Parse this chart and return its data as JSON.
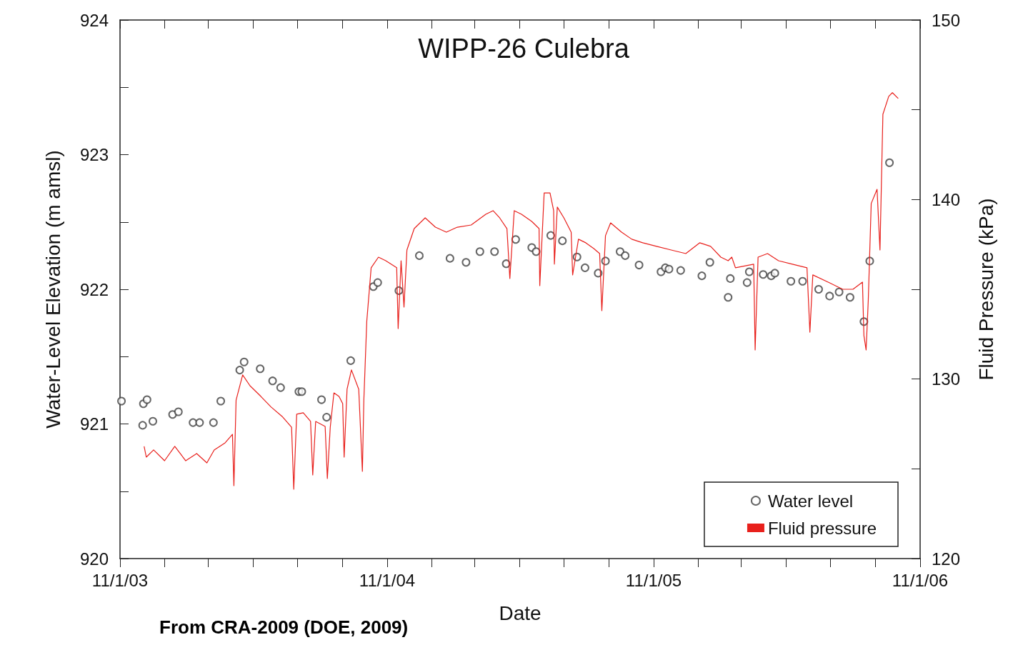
{
  "chart_data": {
    "type": "line",
    "title": "WIPP-26 Culebra",
    "xlabel": "Date",
    "ylabel": "Water-Level Elevation (m amsl)",
    "y2label": "Fluid Pressure (kPa)",
    "annotations": [
      "From CRA-2009 (DOE, 2009)"
    ],
    "xlim": [
      "2003-11-01",
      "2006-11-01"
    ],
    "xticks": [
      {
        "value": "2003-11-01",
        "label": "11/1/03"
      },
      {
        "value": "2004-01-01",
        "label": null
      },
      {
        "value": "2004-03-01",
        "label": null
      },
      {
        "value": "2004-05-01",
        "label": null
      },
      {
        "value": "2004-07-01",
        "label": null
      },
      {
        "value": "2004-09-01",
        "label": null
      },
      {
        "value": "2004-11-01",
        "label": "11/1/04"
      },
      {
        "value": "2005-01-01",
        "label": null
      },
      {
        "value": "2005-03-01",
        "label": null
      },
      {
        "value": "2005-05-01",
        "label": null
      },
      {
        "value": "2005-07-01",
        "label": null
      },
      {
        "value": "2005-09-01",
        "label": null
      },
      {
        "value": "2005-11-01",
        "label": "11/1/05"
      },
      {
        "value": "2006-01-01",
        "label": null
      },
      {
        "value": "2006-03-01",
        "label": null
      },
      {
        "value": "2006-05-01",
        "label": null
      },
      {
        "value": "2006-07-01",
        "label": null
      },
      {
        "value": "2006-09-01",
        "label": null
      },
      {
        "value": "2006-11-01",
        "label": "11/1/06"
      }
    ],
    "ylim": [
      920,
      924
    ],
    "yticks": [
      920,
      {
        "value": 920.5,
        "label": null
      },
      921,
      {
        "value": 921.5,
        "label": null
      },
      922,
      {
        "value": 922.5,
        "label": null
      },
      923,
      {
        "value": 923.5,
        "label": null
      },
      924
    ],
    "y2lim": [
      120,
      150
    ],
    "y2ticks": [
      120,
      {
        "value": 125,
        "label": null
      },
      130,
      {
        "value": 135,
        "label": null
      },
      140,
      {
        "value": 145,
        "label": null
      },
      150
    ],
    "grid": false,
    "legend": "bottom right",
    "series": [
      {
        "name": "Water level",
        "type": "scatter",
        "marker": "circle",
        "color": "#404040",
        "x": [
          "2003-11-03",
          "2003-12-02",
          "2003-12-03",
          "2003-12-08",
          "2003-12-16",
          "2004-01-12",
          "2004-01-20",
          "2004-02-09",
          "2004-02-18",
          "2004-03-08",
          "2004-03-18",
          "2004-04-13",
          "2004-04-19",
          "2004-05-11",
          "2004-05-28",
          "2004-06-08",
          "2004-07-03",
          "2004-07-07",
          "2004-08-03",
          "2004-08-10",
          "2004-09-12",
          "2004-10-13",
          "2004-10-19",
          "2004-11-17",
          "2004-12-15",
          "2005-01-26",
          "2005-02-17",
          "2005-03-08",
          "2005-03-28",
          "2005-04-13",
          "2005-04-26",
          "2005-05-18",
          "2005-05-24",
          "2005-06-13",
          "2005-06-29",
          "2005-07-19",
          "2005-07-30",
          "2005-08-17",
          "2005-08-27",
          "2005-09-16",
          "2005-09-23",
          "2005-10-12",
          "2005-11-11",
          "2005-11-17",
          "2005-11-22",
          "2005-12-08",
          "2006-01-06",
          "2006-01-17",
          "2006-02-11",
          "2006-02-14",
          "2006-03-09",
          "2006-03-12",
          "2006-03-31",
          "2006-04-11",
          "2006-04-16",
          "2006-05-08",
          "2006-05-24",
          "2006-06-15",
          "2006-06-30",
          "2006-07-13",
          "2006-07-28",
          "2006-08-16",
          "2006-08-24",
          "2006-09-20"
        ],
        "values": [
          921.17,
          920.99,
          921.15,
          921.18,
          921.02,
          921.07,
          921.09,
          921.01,
          921.01,
          921.01,
          921.17,
          921.4,
          921.46,
          921.41,
          921.32,
          921.27,
          921.24,
          921.24,
          921.18,
          921.05,
          921.47,
          922.02,
          922.05,
          921.99,
          922.25,
          922.23,
          922.2,
          922.28,
          922.28,
          922.19,
          922.37,
          922.31,
          922.28,
          922.4,
          922.36,
          922.24,
          922.16,
          922.12,
          922.21,
          922.28,
          922.25,
          922.18,
          922.13,
          922.16,
          922.15,
          922.14,
          922.1,
          922.2,
          921.94,
          922.08,
          922.05,
          922.13,
          922.11,
          922.1,
          922.12,
          922.06,
          922.06,
          922.0,
          921.95,
          921.98,
          921.94,
          921.76,
          922.21,
          922.94
        ]
      },
      {
        "name": "Fluid pressure",
        "axis": "y2",
        "marker": "none",
        "line_style": "solid",
        "color": "#e8201c",
        "x": [
          "2003-12-04",
          "2003-12-07",
          "2003-12-17",
          "2004-01-01",
          "2004-01-15",
          "2004-01-30",
          "2004-02-14",
          "2004-02-28",
          "2004-03-09",
          "2004-03-24",
          "2004-04-03",
          "2004-04-05",
          "2004-04-08",
          "2004-04-17",
          "2004-04-27",
          "2004-05-12",
          "2004-05-26",
          "2004-06-10",
          "2004-06-23",
          "2004-06-26",
          "2004-06-30",
          "2004-07-09",
          "2004-07-19",
          "2004-07-22",
          "2004-07-26",
          "2004-08-08",
          "2004-08-11",
          "2004-08-15",
          "2004-08-20",
          "2004-08-27",
          "2004-09-01",
          "2004-09-03",
          "2004-09-07",
          "2004-09-13",
          "2004-09-23",
          "2004-09-28",
          "2004-09-30",
          "2004-10-04",
          "2004-10-10",
          "2004-10-20",
          "2004-10-30",
          "2004-11-14",
          "2004-11-16",
          "2004-11-20",
          "2004-11-24",
          "2004-11-28",
          "2004-12-08",
          "2004-12-23",
          "2005-01-06",
          "2005-01-21",
          "2005-02-05",
          "2005-02-24",
          "2005-03-16",
          "2005-03-26",
          "2005-04-04",
          "2005-04-14",
          "2005-04-18",
          "2005-04-24",
          "2005-05-04",
          "2005-05-18",
          "2005-05-28",
          "2005-05-29",
          "2005-06-04",
          "2005-06-12",
          "2005-06-17",
          "2005-06-18",
          "2005-06-22",
          "2005-07-01",
          "2005-07-11",
          "2005-07-13",
          "2005-07-21",
          "2005-07-31",
          "2005-08-11",
          "2005-08-19",
          "2005-08-22",
          "2005-08-27",
          "2005-09-03",
          "2005-09-18",
          "2005-10-02",
          "2005-10-17",
          "2005-11-05",
          "2005-11-25",
          "2005-12-15",
          "2006-01-03",
          "2006-01-18",
          "2006-02-01",
          "2006-02-11",
          "2006-02-16",
          "2006-02-21",
          "2006-03-18",
          "2006-03-20",
          "2006-03-24",
          "2006-04-06",
          "2006-04-21",
          "2006-05-10",
          "2006-05-30",
          "2006-06-03",
          "2006-06-07",
          "2006-06-28",
          "2006-07-18",
          "2006-08-01",
          "2006-08-14",
          "2006-08-16",
          "2006-08-19",
          "2006-08-22",
          "2006-08-26",
          "2006-09-03",
          "2006-09-07",
          "2006-09-11",
          "2006-09-19",
          "2006-09-24",
          "2006-10-02"
        ],
        "values": [
          126.25,
          125.65,
          126.05,
          125.45,
          126.25,
          125.45,
          125.85,
          125.33,
          126.05,
          126.45,
          126.92,
          124.06,
          128.83,
          130.23,
          129.63,
          129.03,
          128.44,
          127.92,
          127.32,
          123.86,
          128.04,
          128.12,
          127.64,
          124.66,
          127.64,
          127.36,
          124.46,
          127.32,
          129.23,
          129.03,
          128.63,
          125.65,
          129.43,
          130.51,
          129.43,
          124.86,
          128.83,
          133.21,
          136.2,
          136.79,
          136.59,
          136.2,
          132.81,
          136.59,
          134.01,
          137.19,
          138.38,
          138.98,
          138.46,
          138.18,
          138.46,
          138.58,
          139.18,
          139.38,
          138.98,
          138.38,
          135.6,
          139.38,
          139.18,
          138.78,
          138.38,
          135.2,
          140.37,
          140.37,
          139.38,
          136.4,
          139.58,
          138.98,
          138.18,
          135.8,
          137.79,
          137.59,
          137.27,
          136.99,
          133.81,
          137.99,
          138.7,
          138.18,
          137.79,
          137.59,
          137.39,
          137.19,
          136.99,
          137.59,
          137.39,
          136.79,
          136.59,
          136.79,
          136.2,
          136.4,
          131.62,
          136.79,
          136.99,
          136.59,
          136.4,
          136.2,
          132.61,
          135.8,
          135.4,
          135.0,
          135.0,
          135.4,
          132.42,
          131.62,
          134.41,
          139.78,
          140.57,
          137.19,
          144.75,
          145.75,
          145.95,
          145.63
        ]
      }
    ]
  }
}
